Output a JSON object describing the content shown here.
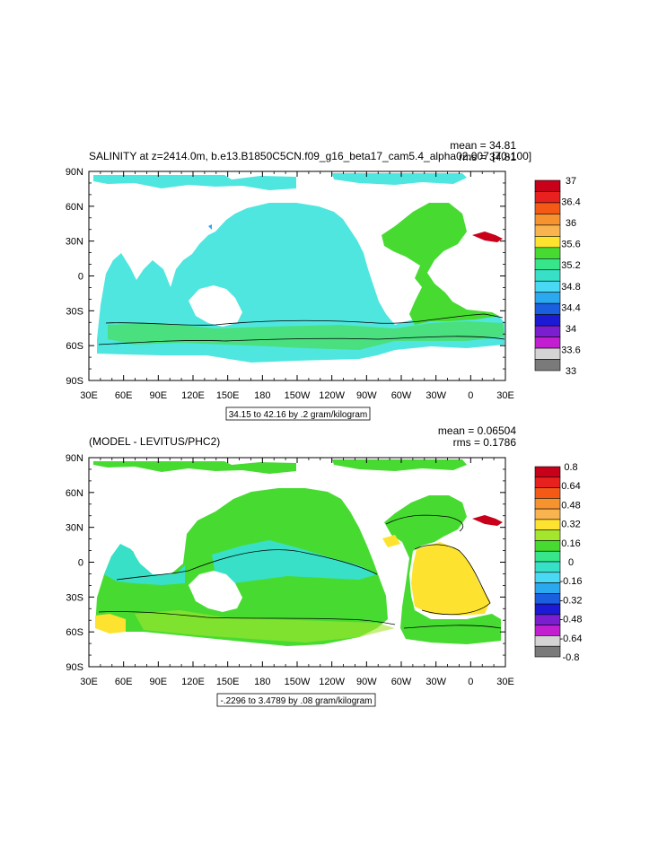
{
  "panels": [
    {
      "id": "salinity",
      "title": "SALINITY at z=2414.0m, b.e13.B1850C5CN.f09_g16_beta17_cam5.4_alpha02.007 [70-100]",
      "stats": [
        "mean = 34.81",
        "rms = 34.81"
      ],
      "contour_note": "34.15 to 42.16 by .2 gram/kilogram",
      "x_ticks": [
        "30E",
        "60E",
        "90E",
        "120E",
        "150E",
        "180",
        "150W",
        "120W",
        "90W",
        "60W",
        "30W",
        "0",
        "30E"
      ],
      "y_ticks": [
        "90N",
        "60N",
        "30N",
        "0",
        "30S",
        "60S",
        "90S"
      ],
      "colorbar": {
        "labels": [
          "37",
          "36.4",
          "36",
          "35.6",
          "35.2",
          "34.8",
          "34.4",
          "34",
          "33.6",
          "33"
        ],
        "colors": [
          "#c8001a",
          "#e8211f",
          "#f45a16",
          "#f7932f",
          "#f9b34f",
          "#fde32f",
          "#47db32",
          "#37e58b",
          "#38e0c8",
          "#49d9f5",
          "#2aa8f0",
          "#1a5fe0",
          "#1b1bd6",
          "#7a1ed0",
          "#c11fcf",
          "#d4d4d4",
          "#7a7a7a"
        ]
      }
    },
    {
      "id": "difference",
      "title": "(MODEL - LEVITUS/PHC2)",
      "stats": [
        "mean = 0.06504",
        "rms = 0.1786"
      ],
      "contour_note": "-.2296 to 3.4789 by .08 gram/kilogram",
      "x_ticks": [
        "30E",
        "60E",
        "90E",
        "120E",
        "150E",
        "180",
        "150W",
        "120W",
        "90W",
        "60W",
        "30W",
        "0",
        "30E"
      ],
      "y_ticks": [
        "90N",
        "60N",
        "30N",
        "0",
        "30S",
        "60S",
        "90S"
      ],
      "colorbar": {
        "labels": [
          "0.8",
          "0.64",
          "0.48",
          "0.32",
          "0.16",
          "0",
          "-0.16",
          "-0.32",
          "-0.48",
          "-0.64",
          "-0.8"
        ],
        "colors": [
          "#c8001a",
          "#e8211f",
          "#f45a16",
          "#f7932f",
          "#f9b34f",
          "#fde32f",
          "#a4e62b",
          "#47db32",
          "#37e58b",
          "#38e0c8",
          "#49d9f5",
          "#2aa8f0",
          "#1a5fe0",
          "#1b1bd6",
          "#7a1ed0",
          "#c11fcf",
          "#d4d4d4",
          "#7a7a7a"
        ]
      }
    }
  ]
}
